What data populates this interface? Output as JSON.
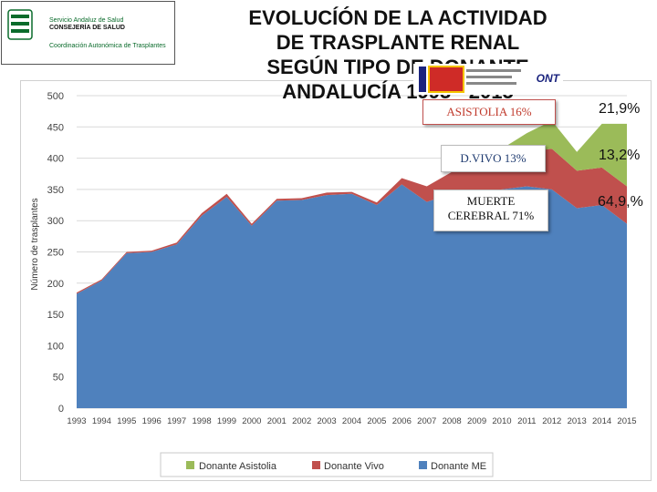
{
  "header": {
    "logo_line1": "Servicio Andaluz de Salud",
    "logo_line2": "CONSEJERÍA DE SALUD",
    "logo_line3": "Coordinación Autonómica de Trasplantes",
    "title_line1": "EVOLUCÍÓN DE LA ACTIVIDAD",
    "title_line2": "DE TRASPLANTE RENAL",
    "title_line3": "SEGÚN TIPO DE DONANTE",
    "title_line4": "ANDALUCÍA 1993 - 2015",
    "ont_text": "ONT"
  },
  "annotations": {
    "asistolia_box": "ASISTOLIA 16%",
    "vivo_box": "D.VIVO 13%",
    "me_box_line1": "MUERTE",
    "me_box_line2": "CEREBRAL 71%",
    "pct_asistolia": "21,9%",
    "pct_vivo": "13,2%",
    "pct_me": "64,9,%"
  },
  "colors": {
    "me": "#4f81bd",
    "vivo": "#c0504d",
    "asistolia": "#9bbb59"
  },
  "chart_data": {
    "type": "area",
    "stacked": true,
    "title": "EVOLUCÍÓN DE LA ACTIVIDAD DE TRASPLANTE RENAL SEGÚN TIPO DE DONANTE ANDALUCÍA 1993 - 2015",
    "xlabel": "",
    "ylabel": "Número de trasplantes",
    "ylim": [
      0,
      500
    ],
    "yticks": [
      0,
      50,
      100,
      150,
      200,
      250,
      300,
      350,
      400,
      450,
      500
    ],
    "categories": [
      "1993",
      "1994",
      "1995",
      "1996",
      "1997",
      "1998",
      "1999",
      "2000",
      "2001",
      "2002",
      "2003",
      "2004",
      "2005",
      "2006",
      "2007",
      "2008",
      "2009",
      "2010",
      "2011",
      "2012",
      "2013",
      "2014",
      "2015"
    ],
    "series": [
      {
        "name": "Donante ME",
        "values": [
          183,
          204,
          248,
          250,
          262,
          308,
          338,
          292,
          332,
          333,
          341,
          343,
          325,
          358,
          330,
          343,
          345,
          350,
          355,
          350,
          320,
          325,
          295
        ]
      },
      {
        "name": "Donante Vivo",
        "values": [
          2,
          2,
          2,
          2,
          3,
          4,
          5,
          3,
          3,
          3,
          4,
          3,
          4,
          10,
          25,
          35,
          40,
          50,
          55,
          65,
          60,
          60,
          60
        ]
      },
      {
        "name": "Donante Asistolia",
        "values": [
          0,
          0,
          0,
          0,
          0,
          0,
          0,
          0,
          0,
          0,
          0,
          0,
          0,
          0,
          0,
          0,
          0,
          15,
          30,
          45,
          30,
          70,
          100
        ]
      }
    ],
    "legend_position": "bottom",
    "grid": true
  }
}
